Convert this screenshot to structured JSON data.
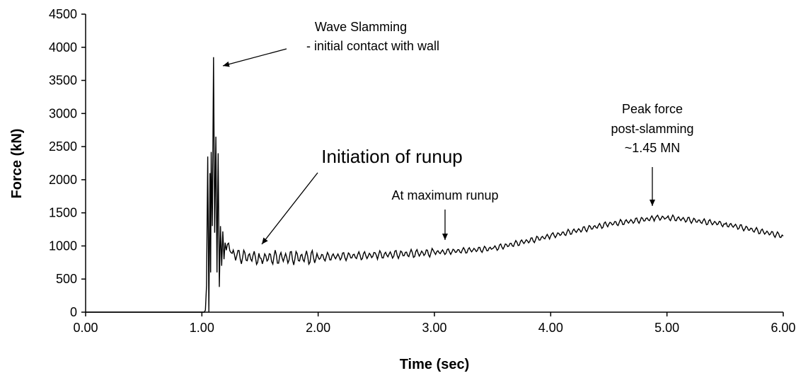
{
  "chart_data": {
    "type": "line",
    "title": "",
    "xlabel": "Time (sec)",
    "ylabel": "Force (kN)",
    "xlim": [
      0,
      6
    ],
    "ylim": [
      0,
      4500
    ],
    "grid": false,
    "legend": "none",
    "x_ticks": [
      "0.00",
      "1.00",
      "2.00",
      "3.00",
      "4.00",
      "5.00",
      "6.00"
    ],
    "y_ticks": [
      "0",
      "500",
      "1000",
      "1500",
      "2000",
      "2500",
      "3000",
      "3500",
      "4000",
      "4500"
    ],
    "line_color": "#000000",
    "series": [
      {
        "x": [
          0,
          1.0,
          1.02,
          1.03,
          1.04,
          1.05,
          1.06,
          1.07,
          1.075,
          1.08,
          1.09,
          1.1,
          1.11,
          1.12,
          1.13,
          1.14,
          1.15,
          1.16,
          1.17,
          1.18,
          1.19,
          1.2,
          1.25,
          1.3,
          1.5,
          2.0,
          2.5,
          3.0,
          3.5,
          4.0,
          4.5,
          4.9,
          5.0,
          5.5,
          6.0
        ],
        "y": [
          0,
          0,
          0,
          30,
          400,
          2350,
          0,
          2100,
          600,
          2420,
          1300,
          3850,
          1200,
          2650,
          600,
          2400,
          380,
          1300,
          700,
          1220,
          800,
          1050,
          900,
          850,
          820,
          830,
          860,
          900,
          960,
          1150,
          1330,
          1420,
          1430,
          1330,
          1150
        ]
      }
    ],
    "annotations": [
      {
        "line1": "Wave Slamming",
        "line2": "- initial contact with wall"
      },
      {
        "line1": "Initiation of runup"
      },
      {
        "line1": "At maximum runup"
      },
      {
        "line1": "Peak force",
        "line2": "post-slamming",
        "line3": "~1.45 MN"
      }
    ]
  }
}
